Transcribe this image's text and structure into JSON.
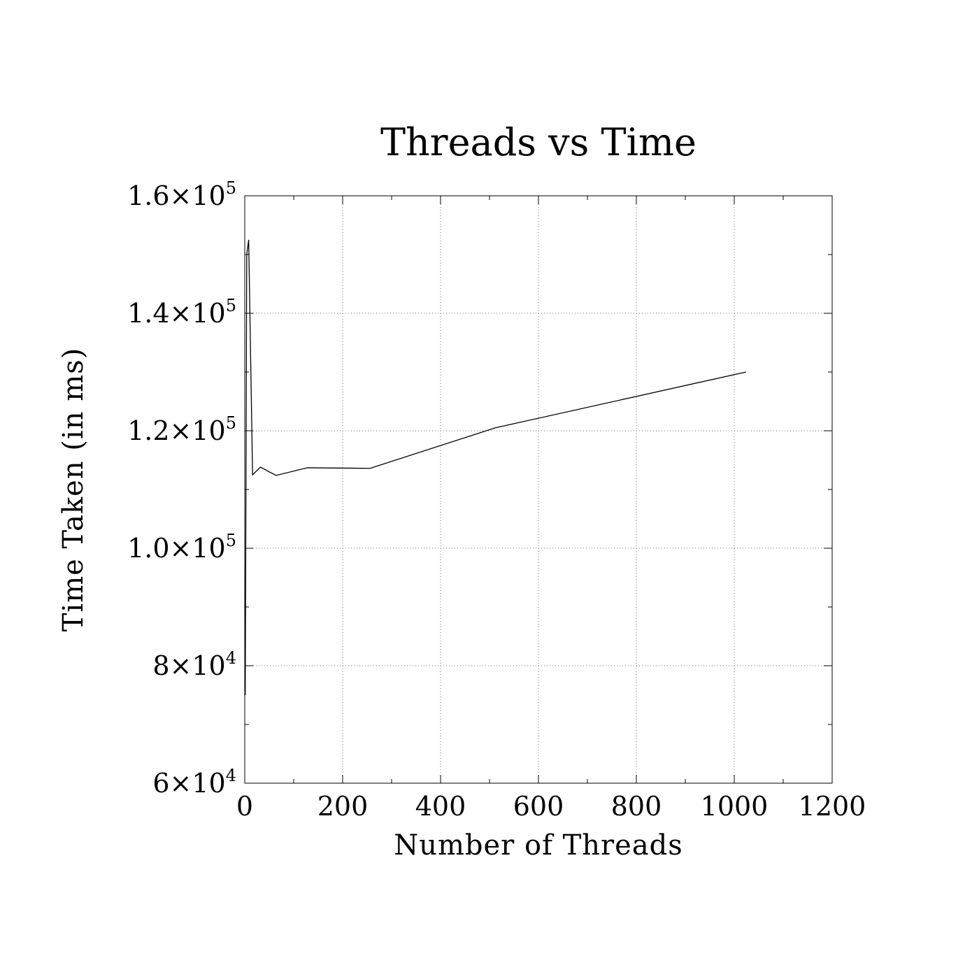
{
  "chart_data": {
    "type": "line",
    "title": "Threads vs Time",
    "xlabel": "Number of Threads",
    "ylabel": "Time Taken (in ms)",
    "xlim": [
      0,
      1200
    ],
    "ylim": [
      60000,
      160000
    ],
    "grid": true,
    "x_ticks": [
      {
        "value": 0,
        "label": "0"
      },
      {
        "value": 200,
        "label": "200"
      },
      {
        "value": 400,
        "label": "400"
      },
      {
        "value": 600,
        "label": "600"
      },
      {
        "value": 800,
        "label": "800"
      },
      {
        "value": 1000,
        "label": "1000"
      },
      {
        "value": 1200,
        "label": "1200"
      }
    ],
    "y_ticks": [
      {
        "value": 60000,
        "mantissa": "6",
        "exponent": "4"
      },
      {
        "value": 80000,
        "mantissa": "8",
        "exponent": "4"
      },
      {
        "value": 100000,
        "mantissa": "1.0",
        "exponent": "5"
      },
      {
        "value": 120000,
        "mantissa": "1.2",
        "exponent": "5"
      },
      {
        "value": 140000,
        "mantissa": "1.4",
        "exponent": "5"
      },
      {
        "value": 160000,
        "mantissa": "1.6",
        "exponent": "5"
      }
    ],
    "times_symbol": "×",
    "tick_base": "10",
    "series": [
      {
        "x": [
          1,
          2,
          4,
          8,
          16,
          32,
          64,
          128,
          256,
          512,
          1024
        ],
        "values": [
          75000,
          98000,
          150000,
          152500,
          112500,
          113800,
          112400,
          113700,
          113600,
          120500,
          130000
        ]
      }
    ]
  }
}
